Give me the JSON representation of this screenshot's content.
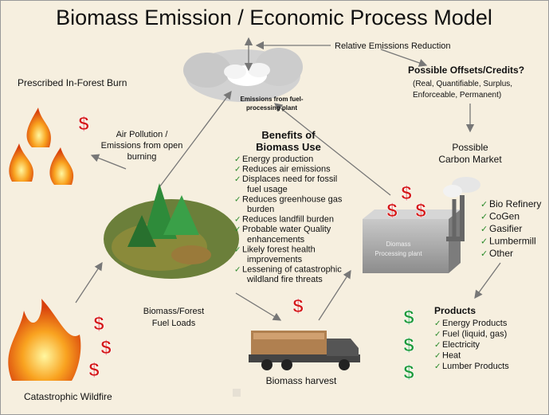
{
  "title": "Biomass Emission / Economic Process Model",
  "currency_symbol": "$",
  "check_mark": "✓",
  "labels": {
    "relative_emissions": "Relative Emissions Reduction",
    "offsets": {
      "heading": "Possible Offsets/Credits?",
      "lines": [
        "(Real, Quantifiable, Surplus,",
        "Enforceable, Permanent)"
      ]
    },
    "carbon_market": [
      "Possible",
      "Carbon Market"
    ],
    "prescribed_burn": "Prescribed In-Forest Burn",
    "air_pollution": [
      "Air Pollution /",
      "Emissions from open",
      "burning"
    ],
    "plant_emissions": [
      "Emissions from fuel-",
      "processing plant"
    ],
    "fuel_loads": [
      "Biomass/Forest",
      "Fuel Loads"
    ],
    "harvest": "Biomass harvest",
    "wildfire": "Catastrophic Wildfire",
    "plant_box": [
      "Diomass",
      "Processing plant"
    ]
  },
  "benefits": {
    "heading": [
      "Benefits of",
      "Biomass Use"
    ],
    "items": [
      [
        "Energy production"
      ],
      [
        "Reduces air emissions"
      ],
      [
        "Displaces need for fossil",
        "fuel usage"
      ],
      [
        "Reduces greenhouse gas",
        "burden"
      ],
      [
        "Reduces landfill burden"
      ],
      [
        "Probable water Quality",
        "enhancements"
      ],
      [
        "Likely forest health",
        "improvements"
      ],
      [
        "Lessening of catastrophic",
        "wildland fire threats"
      ]
    ]
  },
  "processing_options": [
    "Bio Refinery",
    "CoGen",
    "Gasifier",
    "Lumbermill",
    "Other"
  ],
  "products": {
    "heading": "Products",
    "items": [
      "Energy Products",
      "Fuel (liquid, gas)",
      "Electricity",
      "Heat",
      "Lumber Products"
    ]
  }
}
